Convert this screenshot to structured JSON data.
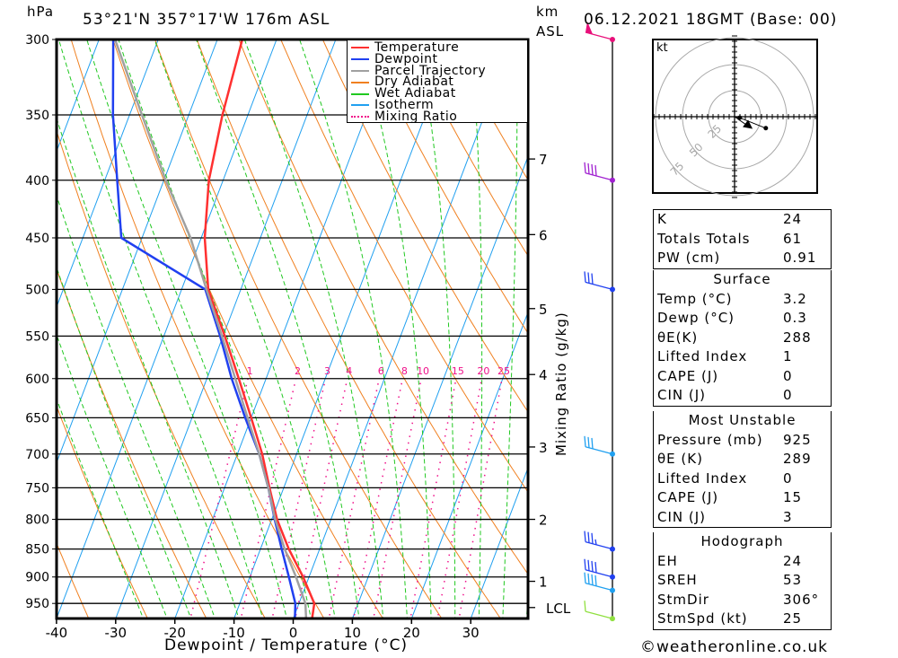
{
  "header": {
    "pressure_unit": "hPa",
    "location": "53°21'N  357°17'W  176m  ASL",
    "km_unit": "km",
    "asl_unit": "ASL",
    "datetime": "06.12.2021  18GMT  (Base: 00)"
  },
  "colors": {
    "temperature": "#ff3030",
    "dewpoint": "#2040f0",
    "parcel": "#a0a0a0",
    "dry_adiabat": "#f08020",
    "wet_adiabat": "#20c820",
    "isotherm": "#20a0f0",
    "mixing_ratio": "#f0108a"
  },
  "chart_data": {
    "type": "line",
    "subtype": "skew-T log-p",
    "xlabel": "Dewpoint / Temperature (°C)",
    "ylabel": "hPa",
    "right_label": "Mixing Ratio (g/kg)",
    "xlim": [
      -40,
      40
    ],
    "ylim": [
      980,
      300
    ],
    "x_ticks": [
      "-40",
      "-30",
      "-20",
      "-10",
      "0",
      "10",
      "20",
      "30"
    ],
    "x_tick_values": [
      -40,
      -30,
      -20,
      -10,
      0,
      10,
      20,
      30
    ],
    "pressure_levels": [
      300,
      350,
      400,
      450,
      500,
      550,
      600,
      650,
      700,
      750,
      800,
      850,
      900,
      950
    ],
    "km_ticks": [
      {
        "label": "7",
        "p": 383
      },
      {
        "label": "6",
        "p": 447
      },
      {
        "label": "5",
        "p": 520
      },
      {
        "label": "4",
        "p": 595
      },
      {
        "label": "3",
        "p": 690
      },
      {
        "label": "2",
        "p": 800
      },
      {
        "label": "1",
        "p": 908
      },
      {
        "label": "LCL",
        "p": 958
      }
    ],
    "mixing_ratio_values": [
      1,
      2,
      3,
      4,
      6,
      8,
      10,
      15,
      20,
      25
    ],
    "legend": [
      "Temperature",
      "Dewpoint",
      "Parcel Trajectory",
      "Dry Adiabat",
      "Wet Adiabat",
      "Isotherm",
      "Mixing Ratio"
    ],
    "legend_position": "top-right",
    "series": [
      {
        "name": "Temperature",
        "p": [
          980,
          950,
          900,
          850,
          800,
          750,
          700,
          650,
          600,
          550,
          500,
          450,
          400,
          350,
          300
        ],
        "t": [
          3.2,
          2.6,
          -1.0,
          -5.2,
          -9.1,
          -12.4,
          -15.8,
          -20.0,
          -24.6,
          -29.7,
          -35.5,
          -39.4,
          -42.4,
          -44.3,
          -45.8
        ]
      },
      {
        "name": "Dewpoint",
        "p": [
          980,
          950,
          900,
          850,
          800,
          750,
          700,
          650,
          600,
          550,
          500,
          450,
          400,
          350,
          300
        ],
        "t": [
          0.3,
          -0.6,
          -3.4,
          -6.4,
          -9.5,
          -12.6,
          -16.3,
          -21.0,
          -25.8,
          -30.5,
          -36.0,
          -53.5,
          -57.9,
          -62.8,
          -67.6
        ]
      },
      {
        "name": "Parcel Trajectory",
        "p": [
          980,
          950,
          900,
          850,
          800,
          750,
          700,
          650,
          600,
          550,
          500,
          450,
          400,
          350,
          300
        ],
        "t": [
          2.2,
          1.1,
          -2.2,
          -5.9,
          -9.4,
          -12.6,
          -16.3,
          -20.6,
          -25.2,
          -30.2,
          -35.8,
          -41.8,
          -49.7,
          -57.9,
          -67.3
        ]
      }
    ],
    "wind_levels": [
      {
        "p": 300,
        "color": "#e8107a",
        "barbs": "pennant"
      },
      {
        "p": 400,
        "color": "#a020d0",
        "barbs": "4"
      },
      {
        "p": 500,
        "color": "#2040f0",
        "barbs": "3"
      },
      {
        "p": 700,
        "color": "#20a0f0",
        "barbs": "3"
      },
      {
        "p": 850,
        "color": "#2040f0",
        "barbs": "3.5"
      },
      {
        "p": 900,
        "color": "#2040f0",
        "barbs": "4"
      },
      {
        "p": 925,
        "color": "#20a0f0",
        "barbs": "4"
      },
      {
        "p": 980,
        "color": "#90e040",
        "barbs": "1"
      }
    ]
  },
  "hodograph": {
    "unit": "kt",
    "rings": [
      "25",
      "50",
      "75"
    ],
    "points_kt": [
      [
        5,
        -1
      ],
      [
        30,
        -11
      ]
    ],
    "storm_motion_kt": [
      13,
      -9
    ]
  },
  "indices": {
    "rows": [
      {
        "label": "K",
        "value": "24"
      },
      {
        "label": "Totals Totals",
        "value": "61"
      },
      {
        "label": "PW (cm)",
        "value": "0.91"
      }
    ]
  },
  "surface": {
    "title": "Surface",
    "rows": [
      {
        "label": "Temp (°C)",
        "value": "3.2"
      },
      {
        "label": "Dewp (°C)",
        "value": "0.3"
      },
      {
        "label": "θE(K)",
        "value": "288"
      },
      {
        "label": "Lifted Index",
        "value": "1"
      },
      {
        "label": "CAPE (J)",
        "value": "0"
      },
      {
        "label": "CIN (J)",
        "value": "0"
      }
    ]
  },
  "most_unstable": {
    "title": "Most Unstable",
    "rows": [
      {
        "label": "Pressure (mb)",
        "value": "925"
      },
      {
        "label": "θE (K)",
        "value": "289"
      },
      {
        "label": "Lifted Index",
        "value": "0"
      },
      {
        "label": "CAPE (J)",
        "value": "15"
      },
      {
        "label": "CIN (J)",
        "value": "3"
      }
    ]
  },
  "hodo_stats": {
    "title": "Hodograph",
    "rows": [
      {
        "label": "EH",
        "value": "24"
      },
      {
        "label": "SREH",
        "value": "53"
      },
      {
        "label": "StmDir",
        "value": "306°"
      },
      {
        "label": "StmSpd (kt)",
        "value": "25"
      }
    ]
  },
  "footer": {
    "copyright": "©weatheronline.co.uk"
  }
}
